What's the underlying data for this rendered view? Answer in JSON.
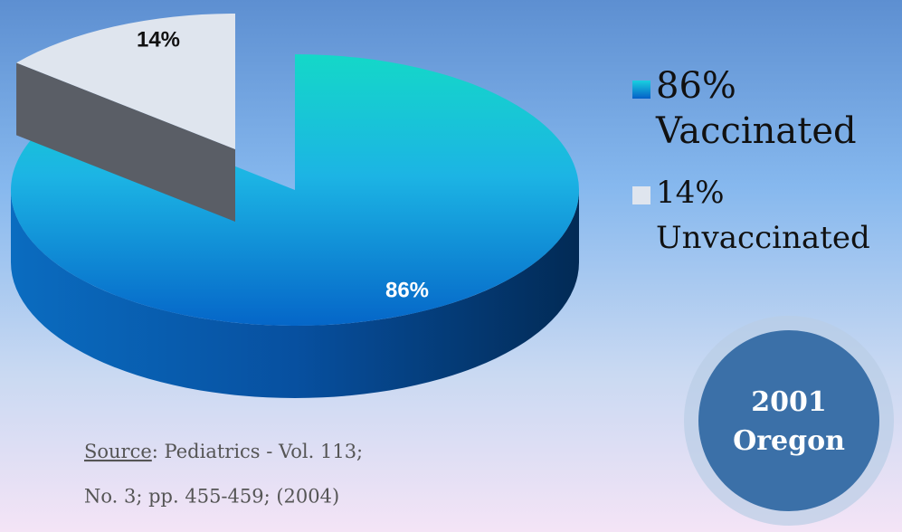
{
  "chart_data": {
    "type": "pie",
    "categories": [
      "Vaccinated",
      "Unvaccinated"
    ],
    "values": [
      86,
      14
    ],
    "value_labels": [
      "86%",
      "14%"
    ],
    "colors": [
      "#0e8ad8",
      "#dfe5ee"
    ],
    "annotations": [
      "2001",
      "Oregon"
    ],
    "source": {
      "label": "Source",
      "lines": [
        ": Pediatrics - Vol. 113;",
        "No. 3; pp. 455-459; (2004)"
      ]
    }
  }
}
